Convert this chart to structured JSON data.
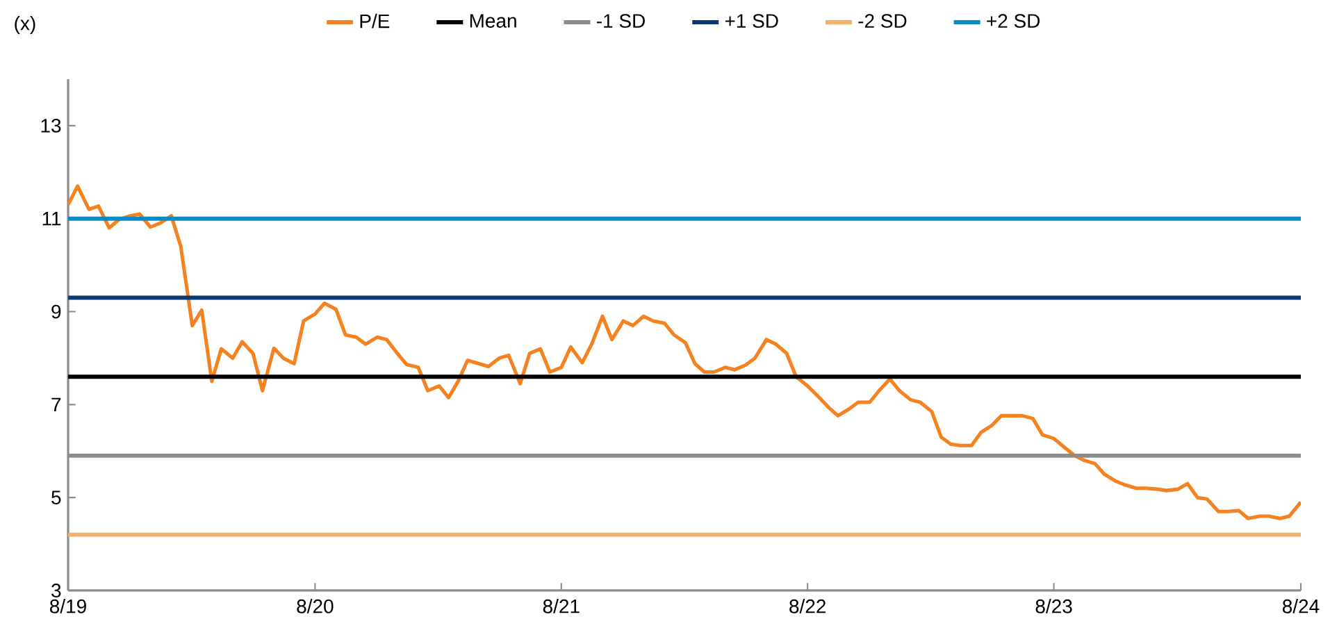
{
  "chart_data": {
    "type": "line",
    "ylabel": "(x)",
    "legend": "top",
    "xlim": [
      "2019-08-01",
      "2024-08-01"
    ],
    "xticks": [
      {
        "value": "2019-08-01",
        "label": "8/19"
      },
      {
        "value": "2020-08-01",
        "label": "8/20"
      },
      {
        "value": "2021-08-01",
        "label": "8/21"
      },
      {
        "value": "2022-08-01",
        "label": "8/22"
      },
      {
        "value": "2023-08-01",
        "label": "8/23"
      },
      {
        "value": "2024-08-01",
        "label": "8/24"
      }
    ],
    "ylim": [
      3,
      14
    ],
    "yticks": [
      3,
      5,
      7,
      9,
      11,
      13
    ],
    "series": [
      {
        "name": "P/E",
        "color": "#f58220",
        "x": [
          "2019-08-01",
          "2019-08-15",
          "2019-09-01",
          "2019-09-15",
          "2019-10-01",
          "2019-10-15",
          "2019-11-01",
          "2019-11-15",
          "2019-12-01",
          "2019-12-15",
          "2020-01-01",
          "2020-01-15",
          "2020-02-01",
          "2020-02-15",
          "2020-03-01",
          "2020-03-15",
          "2020-04-01",
          "2020-04-15",
          "2020-05-01",
          "2020-05-15",
          "2020-06-01",
          "2020-06-15",
          "2020-07-01",
          "2020-07-15",
          "2020-08-01",
          "2020-08-15",
          "2020-09-01",
          "2020-09-15",
          "2020-10-01",
          "2020-10-15",
          "2020-11-01",
          "2020-11-15",
          "2020-12-01",
          "2020-12-15",
          "2021-01-01",
          "2021-01-15",
          "2021-02-01",
          "2021-02-15",
          "2021-03-01",
          "2021-03-15",
          "2021-04-01",
          "2021-04-15",
          "2021-05-01",
          "2021-05-15",
          "2021-06-01",
          "2021-06-15",
          "2021-07-01",
          "2021-07-15",
          "2021-08-01",
          "2021-08-15",
          "2021-09-01",
          "2021-09-15",
          "2021-10-01",
          "2021-10-15",
          "2021-11-01",
          "2021-11-15",
          "2021-12-01",
          "2021-12-15",
          "2022-01-01",
          "2022-01-15",
          "2022-02-01",
          "2022-02-15",
          "2022-03-01",
          "2022-03-15",
          "2022-04-01",
          "2022-04-15",
          "2022-05-01",
          "2022-05-15",
          "2022-06-01",
          "2022-06-15",
          "2022-07-01",
          "2022-07-15",
          "2022-08-01",
          "2022-08-15",
          "2022-09-01",
          "2022-09-15",
          "2022-10-01",
          "2022-10-15",
          "2022-11-01",
          "2022-11-15",
          "2022-12-01",
          "2022-12-15",
          "2023-01-01",
          "2023-01-15",
          "2023-02-01",
          "2023-02-15",
          "2023-03-01",
          "2023-03-15",
          "2023-04-01",
          "2023-04-15",
          "2023-05-01",
          "2023-05-15",
          "2023-06-01",
          "2023-06-15",
          "2023-07-01",
          "2023-07-15",
          "2023-08-01",
          "2023-08-15",
          "2023-09-01",
          "2023-09-15",
          "2023-10-01",
          "2023-10-15",
          "2023-11-01",
          "2023-11-15",
          "2023-12-01",
          "2023-12-15",
          "2024-01-01",
          "2024-01-15",
          "2024-02-01",
          "2024-02-15",
          "2024-03-01",
          "2024-03-15",
          "2024-04-01",
          "2024-04-15",
          "2024-05-01",
          "2024-05-15",
          "2024-06-01",
          "2024-06-15",
          "2024-07-01",
          "2024-07-15",
          "2024-08-01"
        ],
        "values": [
          11.3,
          11.7,
          11.2,
          11.27,
          10.8,
          10.98,
          11.06,
          11.1,
          10.82,
          10.9,
          11.06,
          10.4,
          8.7,
          9.03,
          7.5,
          8.2,
          8.0,
          8.35,
          8.1,
          7.3,
          8.21,
          8.0,
          7.88,
          8.8,
          8.95,
          9.18,
          9.05,
          8.5,
          8.45,
          8.3,
          8.45,
          8.4,
          8.1,
          7.86,
          7.8,
          7.3,
          7.4,
          7.15,
          7.5,
          7.95,
          7.88,
          7.82,
          8.0,
          8.06,
          7.45,
          8.1,
          8.2,
          7.7,
          7.8,
          8.24,
          7.9,
          8.3,
          8.9,
          8.4,
          8.8,
          8.7,
          8.9,
          8.8,
          8.75,
          8.5,
          8.33,
          7.88,
          7.7,
          7.7,
          7.8,
          7.75,
          7.85,
          8.0,
          8.4,
          8.3,
          8.1,
          7.6,
          7.4,
          7.2,
          6.94,
          6.76,
          6.9,
          7.05,
          7.05,
          7.3,
          7.55,
          7.3,
          7.1,
          7.05,
          6.85,
          6.3,
          6.15,
          6.12,
          6.12,
          6.4,
          6.55,
          6.76,
          6.76,
          6.76,
          6.7,
          6.35,
          6.27,
          6.1,
          5.9,
          5.8,
          5.73,
          5.5,
          5.35,
          5.27,
          5.2,
          5.2,
          5.18,
          5.15,
          5.18,
          5.3,
          5.0,
          4.97,
          4.7,
          4.7,
          4.72,
          4.55,
          4.6,
          4.6,
          4.55,
          4.6,
          4.9
        ]
      },
      {
        "name": "Mean",
        "color": "#000000",
        "x": [
          "2019-08-01",
          "2024-08-01"
        ],
        "values": [
          7.6,
          7.6
        ]
      },
      {
        "name": "-1 SD",
        "color": "#8c8c8c",
        "x": [
          "2019-08-01",
          "2024-08-01"
        ],
        "values": [
          5.9,
          5.9
        ]
      },
      {
        "name": "+1 SD",
        "color": "#0a3a70",
        "x": [
          "2019-08-01",
          "2024-08-01"
        ],
        "values": [
          9.3,
          9.3
        ]
      },
      {
        "name": "-2 SD",
        "color": "#f0b26a",
        "x": [
          "2019-08-01",
          "2024-08-01"
        ],
        "values": [
          4.2,
          4.2
        ]
      },
      {
        "name": "+2 SD",
        "color": "#0a8bc3",
        "x": [
          "2019-08-01",
          "2024-08-01"
        ],
        "values": [
          11.0,
          11.0
        ]
      }
    ]
  }
}
